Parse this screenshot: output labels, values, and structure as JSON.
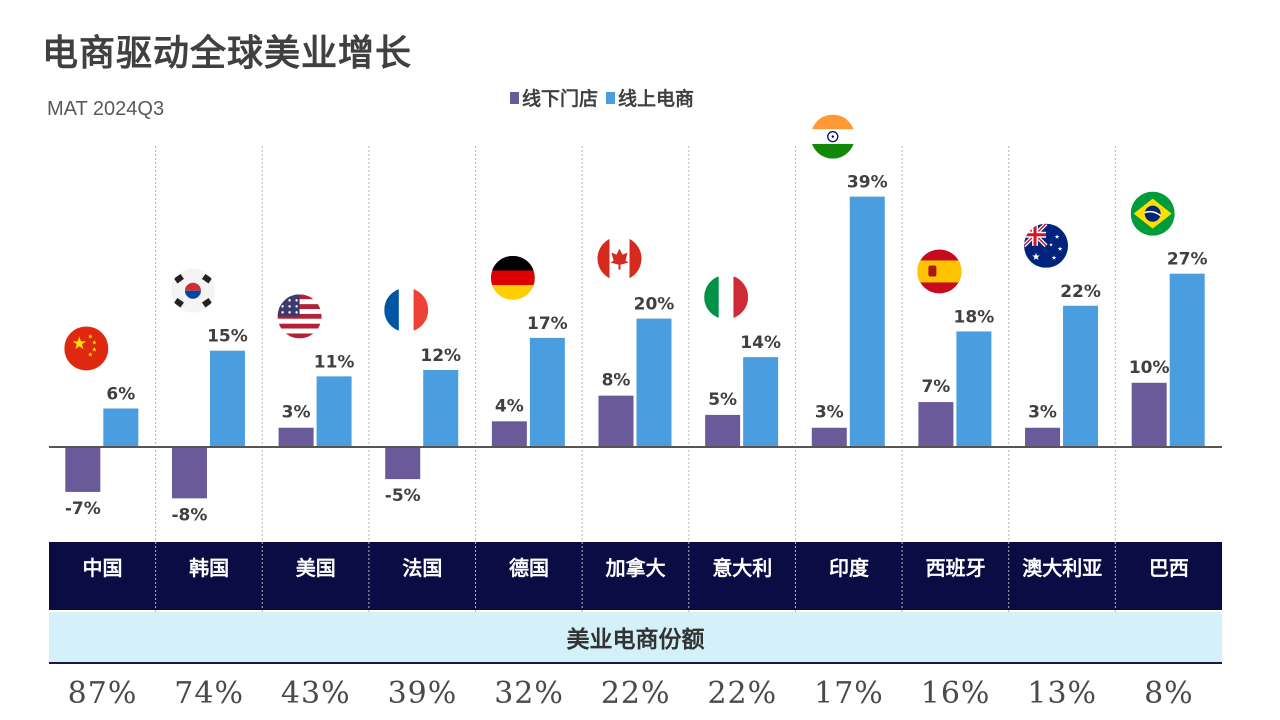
{
  "header": {
    "title": "电商驱动全球美业增长",
    "subtitle": "MAT 2024Q3"
  },
  "legend": {
    "offline": "线下门店",
    "online": "线上电商"
  },
  "share_section": {
    "title": "美业电商份额"
  },
  "colors": {
    "offline": "#6a5a9a",
    "online": "#4a9ee0",
    "header_band": "#0c0c44",
    "share_band": "#d4f0f9"
  },
  "chart_data": {
    "type": "bar",
    "title": "电商驱动全球美业增长",
    "subtitle": "MAT 2024Q3",
    "categories": [
      "中国",
      "韩国",
      "美国",
      "法国",
      "德国",
      "加拿大",
      "意大利",
      "印度",
      "西班牙",
      "澳大利亚",
      "巴西"
    ],
    "series": [
      {
        "name": "线下门店",
        "values": [
          -7,
          -8,
          3,
          -5,
          4,
          8,
          5,
          3,
          7,
          3,
          10
        ],
        "labels": [
          "-7%",
          "-8%",
          "3%",
          "-5%",
          "4%",
          "8%",
          "5%",
          "3%",
          "7%",
          "3%",
          "10%"
        ]
      },
      {
        "name": "线上电商",
        "values": [
          6,
          15,
          11,
          12,
          17,
          20,
          14,
          39,
          18,
          22,
          27
        ],
        "labels": [
          "6%",
          "15%",
          "11%",
          "12%",
          "17%",
          "20%",
          "14%",
          "39%",
          "18%",
          "22%",
          "27%"
        ]
      }
    ],
    "ylim": [
      -12,
      40
    ],
    "ecommerce_share": [
      "87%",
      "74%",
      "43%",
      "39%",
      "32%",
      "22%",
      "22%",
      "17%",
      "16%",
      "13%",
      "8%"
    ],
    "flags": [
      "china-flag",
      "south-korea-flag",
      "usa-flag",
      "france-flag",
      "germany-flag",
      "canada-flag",
      "italy-flag",
      "india-flag",
      "spain-flag",
      "australia-flag",
      "brazil-flag"
    ],
    "xlabel": "",
    "ylabel": "",
    "grid": false
  }
}
